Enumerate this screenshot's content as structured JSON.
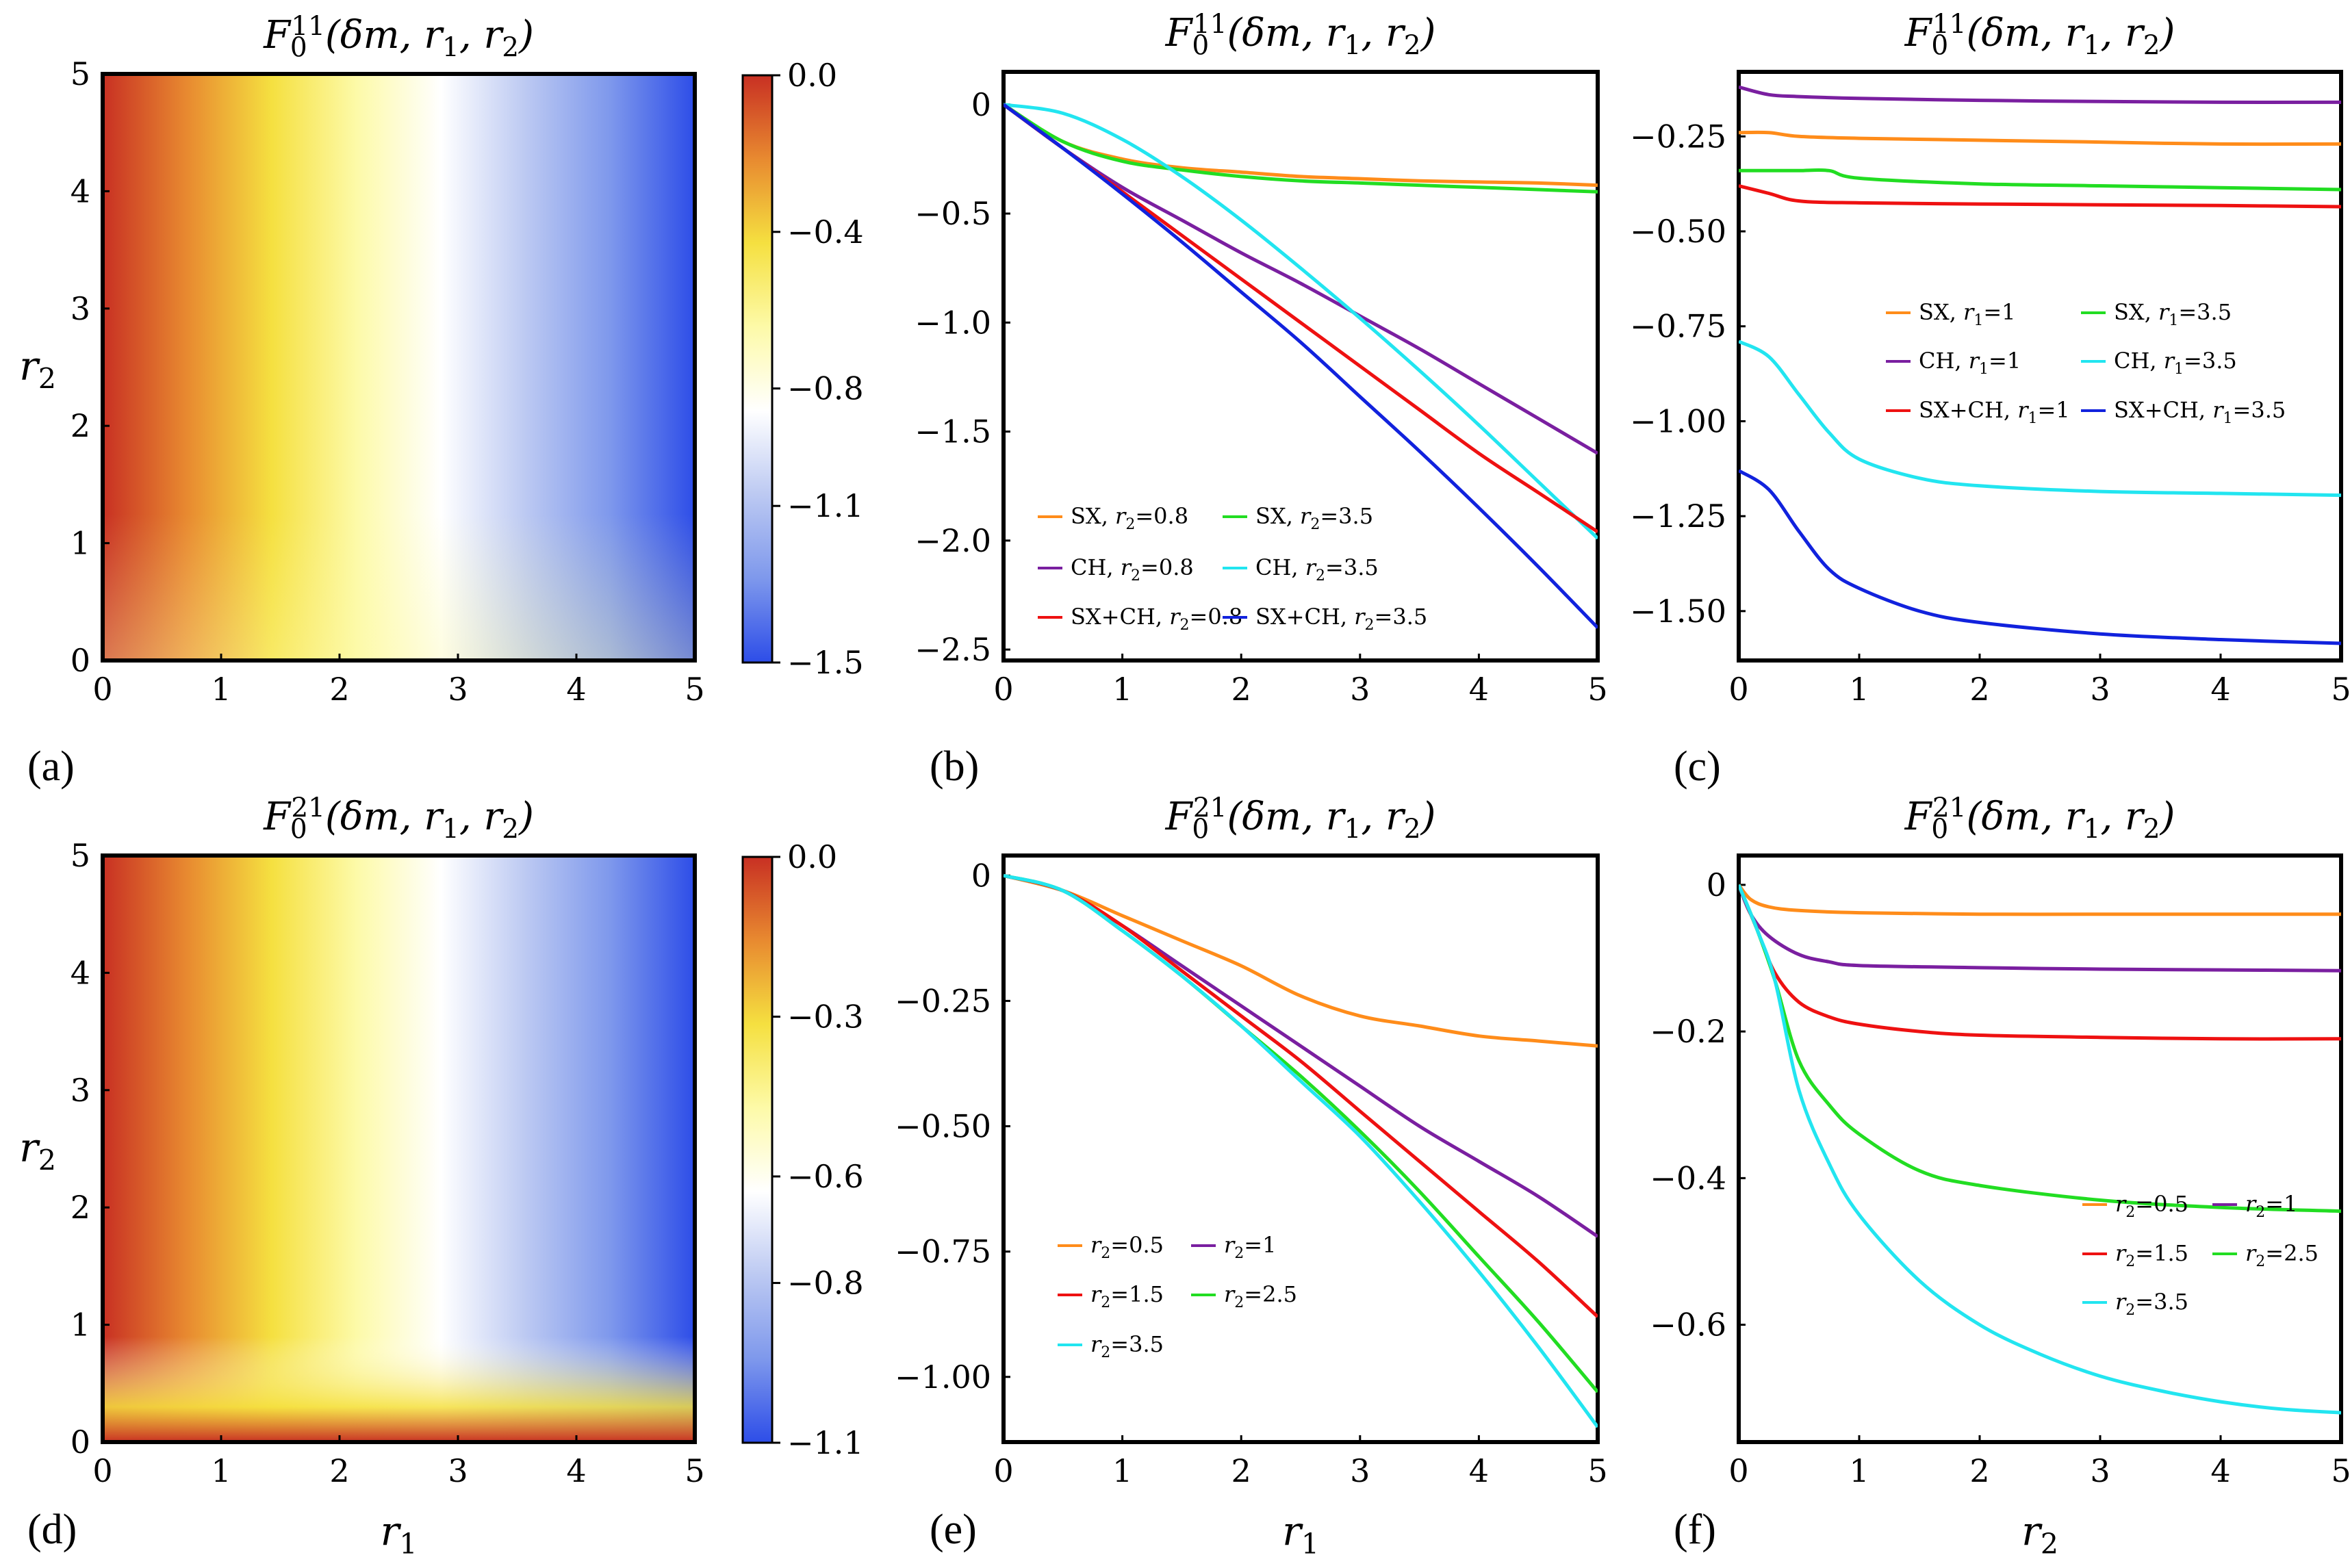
{
  "chart_data": [
    {
      "id": "a",
      "panel_label": "(a)",
      "type": "heatmap",
      "title": "F_0^{11}(δm, r_1, r_2)",
      "xlabel": "",
      "ylabel": "r_2",
      "xlim": [
        0,
        5
      ],
      "ylim": [
        0,
        5
      ],
      "xticks": [
        "0",
        "1",
        "2",
        "3",
        "4",
        "5"
      ],
      "yticks": [
        "0",
        "1",
        "2",
        "3",
        "4",
        "5"
      ],
      "colorbar": {
        "range": [
          -1.5,
          0.0
        ],
        "ticks": [
          0.0,
          -0.4,
          -0.8,
          -1.1,
          -1.5
        ],
        "tick_labels": [
          "0.0",
          "−0.4",
          "−0.8",
          "−1.1",
          "−1.5"
        ]
      },
      "colors": [
        "#c83023",
        "#e88a30",
        "#f5e040",
        "#fdfaa8",
        "#ffffff",
        "#bcc9f2",
        "#7e98ec",
        "#2d4de8"
      ]
    },
    {
      "id": "b",
      "panel_label": "(b)",
      "type": "line",
      "title": "F_0^{11}(δm, r_1, r_2)",
      "xlabel": "",
      "ylabel": "",
      "xlim": [
        0,
        5
      ],
      "ylim": [
        -2.55,
        0.15
      ],
      "xticks": [
        "0",
        "1",
        "2",
        "3",
        "4",
        "5"
      ],
      "yticks": [
        0,
        -0.5,
        -1.0,
        -1.5,
        -2.0,
        -2.5
      ],
      "ytick_labels": [
        "0",
        "−0.5",
        "−1.0",
        "−1.5",
        "−2.0",
        "−2.5"
      ],
      "legend_position": "bottom-left",
      "series": [
        {
          "name": "SX, r2=0.8",
          "color": "#ff8c1a",
          "x": [
            0,
            0.5,
            1,
            1.5,
            2,
            2.5,
            3,
            3.5,
            4,
            4.5,
            5
          ],
          "values": [
            0,
            -0.17,
            -0.25,
            -0.29,
            -0.31,
            -0.33,
            -0.34,
            -0.35,
            -0.355,
            -0.36,
            -0.37
          ]
        },
        {
          "name": "SX, r2=3.5",
          "color": "#22dd22",
          "x": [
            0,
            0.5,
            1,
            1.5,
            2,
            2.5,
            3,
            3.5,
            4,
            4.5,
            5
          ],
          "values": [
            0,
            -0.17,
            -0.26,
            -0.3,
            -0.33,
            -0.35,
            -0.36,
            -0.37,
            -0.38,
            -0.39,
            -0.4
          ]
        },
        {
          "name": "CH, r2=0.8",
          "color": "#7a1fa0",
          "x": [
            0,
            0.5,
            1,
            1.5,
            2,
            2.5,
            3,
            3.5,
            4,
            4.5,
            5
          ],
          "values": [
            0,
            -0.2,
            -0.38,
            -0.53,
            -0.68,
            -0.82,
            -0.97,
            -1.12,
            -1.28,
            -1.44,
            -1.6
          ]
        },
        {
          "name": "CH, r2=3.5",
          "color": "#22e5f0",
          "x": [
            0,
            0.5,
            1,
            1.5,
            2,
            2.5,
            3,
            3.5,
            4,
            4.5,
            5
          ],
          "values": [
            0,
            -0.04,
            -0.16,
            -0.33,
            -0.53,
            -0.75,
            -0.98,
            -1.22,
            -1.47,
            -1.73,
            -1.99
          ]
        },
        {
          "name": "SX+CH, r2=0.8",
          "color": "#ee1111",
          "x": [
            0,
            0.5,
            1,
            1.5,
            2,
            2.5,
            3,
            3.5,
            4,
            4.5,
            5
          ],
          "values": [
            0,
            -0.2,
            -0.4,
            -0.6,
            -0.8,
            -1.0,
            -1.2,
            -1.4,
            -1.6,
            -1.78,
            -1.96
          ]
        },
        {
          "name": "SX+CH, r2=3.5",
          "color": "#1122dd",
          "x": [
            0,
            0.5,
            1,
            1.5,
            2,
            2.5,
            3,
            3.5,
            4,
            4.5,
            5
          ],
          "values": [
            0,
            -0.2,
            -0.41,
            -0.63,
            -0.86,
            -1.09,
            -1.34,
            -1.59,
            -1.85,
            -2.12,
            -2.4
          ]
        }
      ]
    },
    {
      "id": "c",
      "panel_label": "(c)",
      "type": "line",
      "title": "F_0^{11}(δm, r_1, r_2)",
      "xlabel": "",
      "ylabel": "",
      "xlim": [
        0,
        5
      ],
      "ylim": [
        -1.63,
        -0.08
      ],
      "xticks": [
        "0",
        "1",
        "2",
        "3",
        "4",
        "5"
      ],
      "yticks": [
        -0.25,
        -0.5,
        -0.75,
        -1.0,
        -1.25,
        -1.5
      ],
      "ytick_labels": [
        "−0.25",
        "−0.50",
        "−0.75",
        "−1.00",
        "−1.25",
        "−1.50"
      ],
      "legend_position": "center-right",
      "series": [
        {
          "name": "SX, r1=1",
          "color": "#ff8c1a",
          "x": [
            0,
            0.25,
            0.5,
            1,
            2,
            3,
            4,
            5
          ],
          "values": [
            -0.24,
            -0.24,
            -0.25,
            -0.255,
            -0.26,
            -0.265,
            -0.27,
            -0.27
          ]
        },
        {
          "name": "SX, r1=3.5",
          "color": "#22dd22",
          "x": [
            0,
            0.25,
            0.5,
            0.75,
            1,
            2,
            3,
            4,
            5
          ],
          "values": [
            -0.34,
            -0.34,
            -0.34,
            -0.34,
            -0.36,
            -0.375,
            -0.38,
            -0.385,
            -0.39
          ]
        },
        {
          "name": "CH, r1=1",
          "color": "#7a1fa0",
          "x": [
            0,
            0.25,
            0.5,
            1,
            2,
            3,
            4,
            5
          ],
          "values": [
            -0.12,
            -0.14,
            -0.145,
            -0.15,
            -0.155,
            -0.158,
            -0.16,
            -0.16
          ]
        },
        {
          "name": "CH, r1=3.5",
          "color": "#22e5f0",
          "x": [
            0,
            0.25,
            0.5,
            0.75,
            1,
            1.5,
            2,
            3,
            4,
            5
          ],
          "values": [
            -0.79,
            -0.83,
            -0.93,
            -1.03,
            -1.1,
            -1.15,
            -1.17,
            -1.185,
            -1.19,
            -1.195
          ]
        },
        {
          "name": "SX+CH, r1=1",
          "color": "#ee1111",
          "x": [
            0,
            0.25,
            0.5,
            1,
            2,
            3,
            4,
            5
          ],
          "values": [
            -0.38,
            -0.4,
            -0.42,
            -0.425,
            -0.428,
            -0.43,
            -0.432,
            -0.435
          ]
        },
        {
          "name": "SX+CH, r1=3.5",
          "color": "#1122dd",
          "x": [
            0,
            0.25,
            0.5,
            0.75,
            1,
            1.5,
            2,
            3,
            4,
            5
          ],
          "values": [
            -1.13,
            -1.18,
            -1.29,
            -1.39,
            -1.44,
            -1.5,
            -1.53,
            -1.56,
            -1.575,
            -1.585
          ]
        }
      ]
    },
    {
      "id": "d",
      "panel_label": "(d)",
      "type": "heatmap",
      "title": "F_0^{21}(δm, r_1, r_2)",
      "xlabel": "r_1",
      "ylabel": "r_2",
      "xlim": [
        0,
        5
      ],
      "ylim": [
        0,
        5
      ],
      "xticks": [
        "0",
        "1",
        "2",
        "3",
        "4",
        "5"
      ],
      "yticks": [
        "0",
        "1",
        "2",
        "3",
        "4",
        "5"
      ],
      "colorbar": {
        "range": [
          -1.1,
          0.0
        ],
        "ticks": [
          0.0,
          -0.3,
          -0.6,
          -0.8,
          -1.1
        ],
        "tick_labels": [
          "0.0",
          "−0.3",
          "−0.6",
          "−0.8",
          "−1.1"
        ]
      },
      "colors": [
        "#c83023",
        "#e88a30",
        "#f5e040",
        "#fdfaa8",
        "#ffffff",
        "#bcc9f2",
        "#7e98ec",
        "#2d4de8"
      ]
    },
    {
      "id": "e",
      "panel_label": "(e)",
      "type": "line",
      "title": "F_0^{21}(δm, r_1, r_2)",
      "xlabel": "r_1",
      "ylabel": "",
      "xlim": [
        0,
        5
      ],
      "ylim": [
        -1.13,
        0.04
      ],
      "xticks": [
        "0",
        "1",
        "2",
        "3",
        "4",
        "5"
      ],
      "yticks": [
        0,
        -0.25,
        -0.5,
        -0.75,
        -1.0
      ],
      "ytick_labels": [
        "0",
        "−0.25",
        "−0.50",
        "−0.75",
        "−1.00"
      ],
      "legend_position": "bottom-left",
      "series": [
        {
          "name": "r2=0.5",
          "color": "#ff8c1a",
          "x": [
            0,
            0.5,
            1,
            1.5,
            2,
            2.5,
            3,
            3.5,
            4,
            4.5,
            5
          ],
          "values": [
            0,
            -0.03,
            -0.08,
            -0.13,
            -0.18,
            -0.24,
            -0.28,
            -0.3,
            -0.32,
            -0.33,
            -0.34
          ]
        },
        {
          "name": "r2=1",
          "color": "#7a1fa0",
          "x": [
            0,
            0.5,
            1,
            1.5,
            2,
            2.5,
            3,
            3.5,
            4,
            4.5,
            5
          ],
          "values": [
            0,
            -0.03,
            -0.1,
            -0.18,
            -0.26,
            -0.34,
            -0.42,
            -0.5,
            -0.57,
            -0.64,
            -0.72
          ]
        },
        {
          "name": "r2=1.5",
          "color": "#ee1111",
          "x": [
            0,
            0.5,
            1,
            1.5,
            2,
            2.5,
            3,
            3.5,
            4,
            4.5,
            5
          ],
          "values": [
            0,
            -0.03,
            -0.1,
            -0.19,
            -0.28,
            -0.37,
            -0.47,
            -0.57,
            -0.67,
            -0.77,
            -0.88
          ]
        },
        {
          "name": "r2=2.5",
          "color": "#22dd22",
          "x": [
            0,
            0.5,
            1,
            1.5,
            2,
            2.5,
            3,
            3.5,
            4,
            4.5,
            5
          ],
          "values": [
            0,
            -0.03,
            -0.11,
            -0.2,
            -0.3,
            -0.4,
            -0.51,
            -0.63,
            -0.76,
            -0.89,
            -1.03
          ]
        },
        {
          "name": "r2=3.5",
          "color": "#22e5f0",
          "x": [
            0,
            0.5,
            1,
            1.5,
            2,
            2.5,
            3,
            3.5,
            4,
            4.5,
            5
          ],
          "values": [
            0,
            -0.03,
            -0.11,
            -0.2,
            -0.3,
            -0.41,
            -0.52,
            -0.65,
            -0.79,
            -0.94,
            -1.1
          ]
        }
      ]
    },
    {
      "id": "f",
      "panel_label": "(f)",
      "type": "line",
      "title": "F_0^{21}(δm, r_1, r_2)",
      "xlabel": "r_2",
      "ylabel": "",
      "xlim": [
        0,
        5
      ],
      "ylim": [
        -0.76,
        0.04
      ],
      "xticks": [
        "0",
        "1",
        "2",
        "3",
        "4",
        "5"
      ],
      "yticks": [
        0,
        -0.2,
        -0.4,
        -0.6
      ],
      "ytick_labels": [
        "0",
        "−0.2",
        "−0.4",
        "−0.6"
      ],
      "legend_position": "center-right",
      "series": [
        {
          "name": "r2=0.5",
          "color": "#ff8c1a",
          "x": [
            0,
            0.1,
            0.25,
            0.5,
            1,
            2,
            3,
            4,
            5
          ],
          "values": [
            0,
            -0.02,
            -0.03,
            -0.035,
            -0.038,
            -0.04,
            -0.04,
            -0.04,
            -0.04
          ]
        },
        {
          "name": "r2=1",
          "color": "#7a1fa0",
          "x": [
            0,
            0.1,
            0.25,
            0.5,
            0.75,
            1,
            2,
            3,
            4,
            5
          ],
          "values": [
            0,
            -0.04,
            -0.07,
            -0.095,
            -0.105,
            -0.11,
            -0.113,
            -0.115,
            -0.116,
            -0.117
          ]
        },
        {
          "name": "r2=1.5",
          "color": "#ee1111",
          "x": [
            0,
            0.15,
            0.3,
            0.5,
            0.75,
            1,
            1.5,
            2,
            3,
            4,
            5
          ],
          "values": [
            0,
            -0.06,
            -0.12,
            -0.16,
            -0.18,
            -0.19,
            -0.2,
            -0.205,
            -0.208,
            -0.21,
            -0.21
          ]
        },
        {
          "name": "r2=2.5",
          "color": "#22dd22",
          "x": [
            0,
            0.15,
            0.3,
            0.5,
            0.75,
            1,
            1.5,
            2,
            3,
            4,
            5
          ],
          "values": [
            0,
            -0.06,
            -0.13,
            -0.24,
            -0.3,
            -0.34,
            -0.39,
            -0.41,
            -0.43,
            -0.44,
            -0.445
          ]
        },
        {
          "name": "r2=3.5",
          "color": "#22e5f0",
          "x": [
            0,
            0.15,
            0.3,
            0.5,
            0.75,
            1,
            1.5,
            2,
            2.5,
            3,
            3.5,
            4,
            4.5,
            5
          ],
          "values": [
            0,
            -0.06,
            -0.13,
            -0.28,
            -0.38,
            -0.45,
            -0.54,
            -0.6,
            -0.64,
            -0.67,
            -0.69,
            -0.705,
            -0.715,
            -0.72
          ]
        }
      ]
    }
  ]
}
